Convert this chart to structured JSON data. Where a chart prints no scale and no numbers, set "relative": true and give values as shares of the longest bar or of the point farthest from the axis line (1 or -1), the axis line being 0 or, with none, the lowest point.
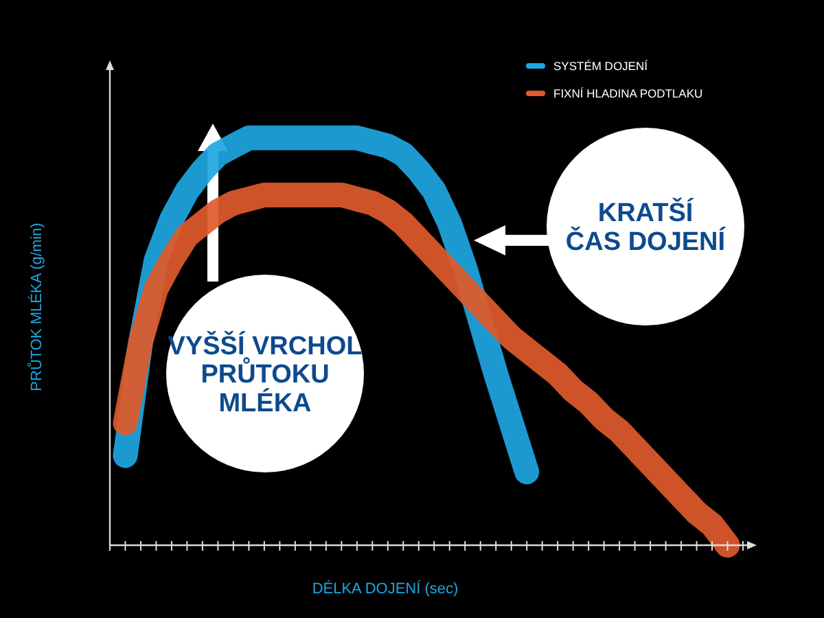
{
  "chart_data": {
    "type": "line",
    "relative": true,
    "xlabel": "DÉLKA DOJENÍ (sec)",
    "ylabel": "PRŮTOK MLÉKA (g/min)",
    "categories": [
      null,
      null,
      null,
      null,
      null,
      null,
      null,
      null,
      null,
      null,
      null,
      null,
      null,
      null,
      null,
      null,
      null,
      null,
      null,
      null,
      null,
      null,
      null,
      null,
      null,
      null,
      null,
      null,
      null,
      null,
      null,
      null,
      null,
      null,
      null,
      null,
      null,
      null,
      null,
      null,
      null,
      null
    ],
    "series": [
      {
        "name": "SYSTÉM DOJENÍ",
        "color": "#1ea7e1",
        "values": [
          null,
          0.22,
          0.5,
          0.7,
          0.8,
          0.87,
          0.92,
          0.96,
          0.98,
          1,
          1,
          1,
          1,
          1,
          1,
          1,
          1,
          0.99,
          0.98,
          0.96,
          0.92,
          0.87,
          0.79,
          0.68,
          0.55,
          0.42,
          0.3,
          0.18,
          null,
          null,
          null,
          null,
          null,
          null,
          null,
          null,
          null,
          null,
          null,
          null,
          null,
          null
        ]
      },
      {
        "name": "FIXNÍ HLADINA PODTLAKU",
        "color": "#e05a2b",
        "values": [
          null,
          0.3,
          0.5,
          0.63,
          0.7,
          0.76,
          0.79,
          0.82,
          0.84,
          0.85,
          0.86,
          0.86,
          0.86,
          0.86,
          0.86,
          0.86,
          0.85,
          0.84,
          0.82,
          0.79,
          0.75,
          0.71,
          0.67,
          0.63,
          0.59,
          0.55,
          0.51,
          0.48,
          0.45,
          0.42,
          0.38,
          0.35,
          0.31,
          0.28,
          0.24,
          0.2,
          0.16,
          0.12,
          0.08,
          0.05,
          0,
          null
        ]
      }
    ],
    "annotations": [
      "VYŠŠÍ VRCHOL\nPRŮTOKU\nMLÉKA",
      "KRATŠÍ\nČAS DOJENÍ"
    ],
    "legend": "top right",
    "line_style": "solid"
  }
}
